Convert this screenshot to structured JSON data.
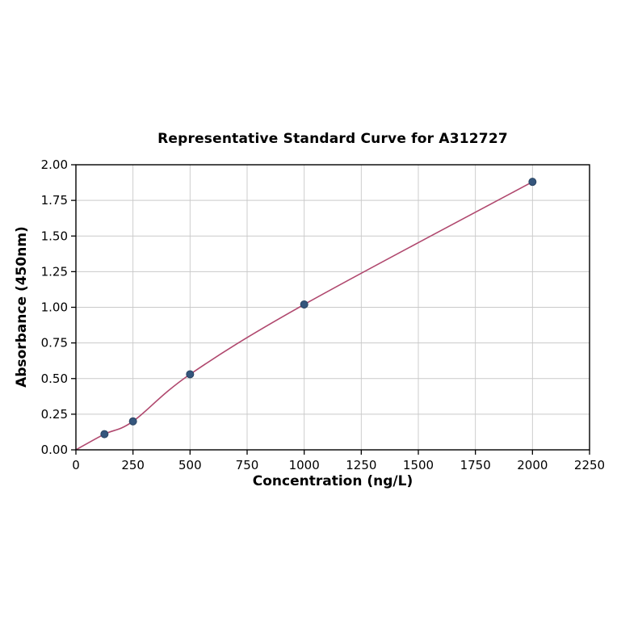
{
  "page": {
    "background": "#ffffff"
  },
  "chart_data": {
    "type": "scatter",
    "title": "Representative Standard Curve for A312727",
    "xlabel": "Concentration (ng/L)",
    "ylabel": "Absorbance (450nm)",
    "xlim": [
      0,
      2250
    ],
    "ylim": [
      0,
      2.0
    ],
    "x_ticks": [
      0,
      250,
      500,
      750,
      1000,
      1250,
      1500,
      1750,
      2000,
      2250
    ],
    "y_ticks": [
      0.0,
      0.25,
      0.5,
      0.75,
      1.0,
      1.25,
      1.5,
      1.75,
      2.0
    ],
    "grid": true,
    "legend": false,
    "series": [
      {
        "name": "standard-points",
        "kind": "points",
        "x": [
          125,
          250,
          500,
          1000,
          2000
        ],
        "y": [
          0.11,
          0.2,
          0.53,
          1.02,
          1.88
        ]
      },
      {
        "name": "fit-curve",
        "kind": "smooth-line",
        "x": [
          0,
          125,
          250,
          500,
          1000,
          2000
        ],
        "y": [
          0.0,
          0.11,
          0.2,
          0.53,
          1.02,
          1.88
        ]
      }
    ],
    "colors": {
      "curve": "#b0486e",
      "points": "#35567d",
      "point_edge": "#2a4563",
      "grid": "#c9c9c9",
      "axis": "#000000",
      "text": "#000000"
    }
  }
}
